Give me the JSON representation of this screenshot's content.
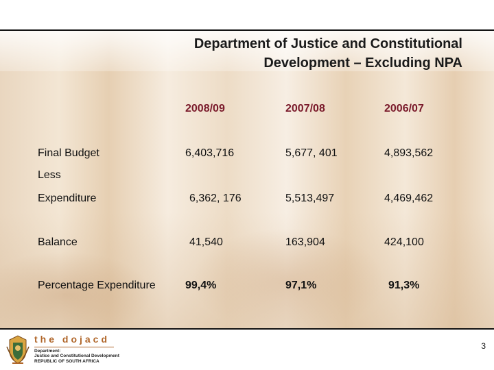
{
  "title": {
    "line1": "Department of Justice and Constitutional",
    "line2": "Development – Excluding NPA"
  },
  "table": {
    "headers": [
      "2008/09",
      "2007/08",
      "2006/07"
    ],
    "rows": [
      {
        "label": "Final Budget",
        "values": [
          "6,403,716",
          "5,677, 401",
          "4,893,562"
        ]
      },
      {
        "label": "Less",
        "values": []
      },
      {
        "label": "Expenditure",
        "values": [
          "6,362, 176",
          "5,513,497",
          "4,469,462"
        ]
      },
      {
        "label": "Balance",
        "values": [
          "41,540",
          "163,904",
          "424,100"
        ]
      },
      {
        "label": "Percentage Expenditure",
        "values": [
          "99,4%",
          "97,1%",
          "91,3%"
        ]
      }
    ]
  },
  "footer": {
    "brand": "the dojacd",
    "dept_line1": "Department:",
    "dept_line2": "Justice and Constitutional Development",
    "dept_line3": "REPUBLIC OF SOUTH AFRICA",
    "page_number": "3",
    "crest_icon": "coat-of-arms-icon"
  },
  "colors": {
    "header_text": "#7a1a2b",
    "brand": "#b0662a"
  }
}
